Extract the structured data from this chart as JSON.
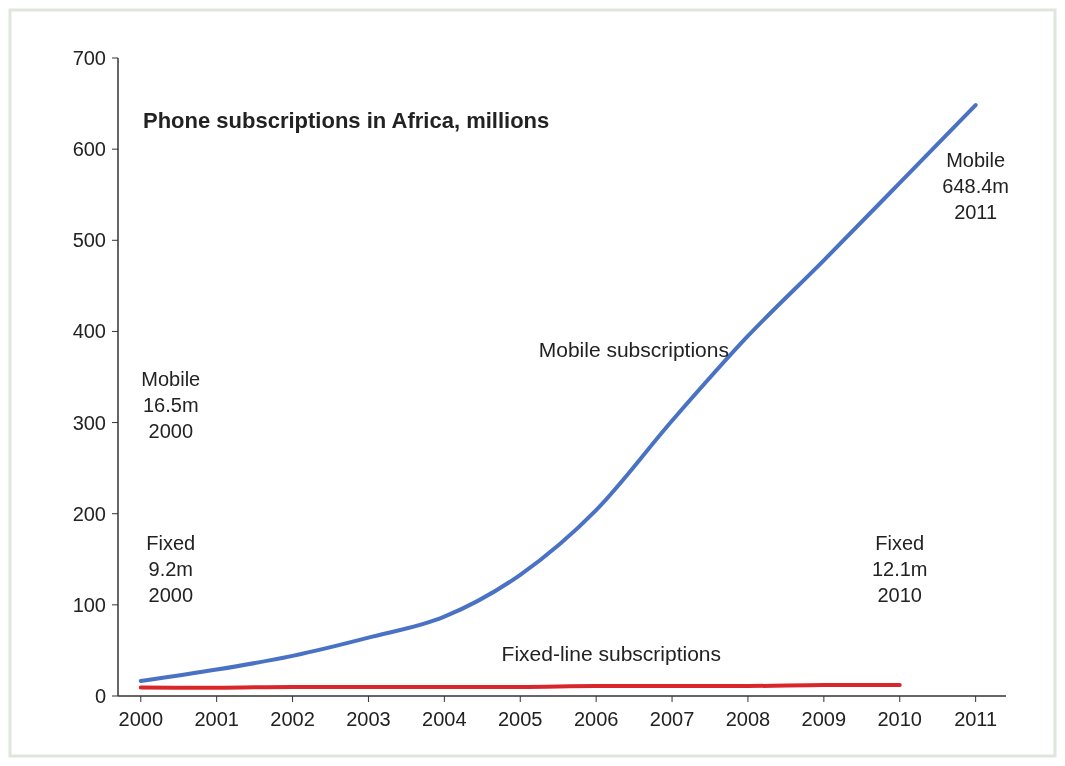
{
  "chart_data": {
    "type": "line",
    "title": "Phone subscriptions in Africa, millions",
    "x": [
      2000,
      2001,
      2002,
      2003,
      2004,
      2005,
      2006,
      2007,
      2008,
      2009,
      2010,
      2011
    ],
    "series": [
      {
        "name": "Mobile subscriptions",
        "color": "#4a72c4",
        "values": [
          16.5,
          29,
          44,
          64,
          87,
          133,
          204,
          302,
          395,
          478,
          563,
          648.4
        ]
      },
      {
        "name": "Fixed-line subscriptions",
        "color": "#d9262b",
        "values": [
          9.2,
          9,
          10,
          10,
          10,
          10,
          11,
          11,
          11,
          12,
          12.1,
          null
        ]
      }
    ],
    "xlim": [
      1999.7,
      2011.4
    ],
    "xticks": [
      2000,
      2001,
      2002,
      2003,
      2004,
      2005,
      2006,
      2007,
      2008,
      2009,
      2010,
      2011
    ],
    "ylim": [
      0,
      700
    ],
    "yticks": [
      0,
      100,
      200,
      300,
      400,
      500,
      600,
      700
    ],
    "grid": false,
    "marker": "none",
    "line_style": "solid",
    "annotations": [
      "Mobile\n16.5m\n2000",
      "Fixed\n9.2m\n2000",
      "Fixed\n12.1m\n2010",
      "Mobile\n648.4m\n2011"
    ]
  }
}
